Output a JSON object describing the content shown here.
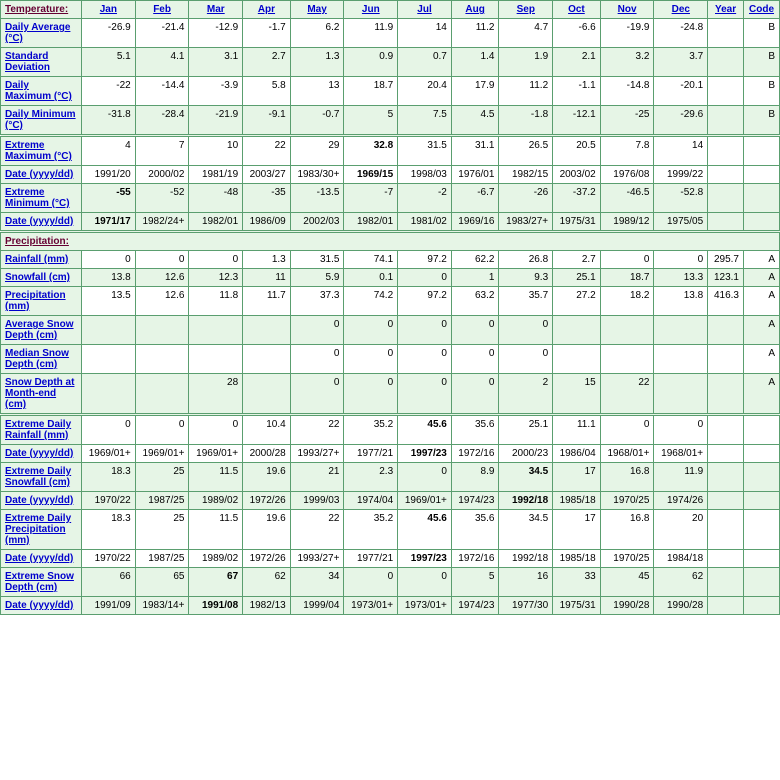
{
  "headers": [
    "Jan",
    "Feb",
    "Mar",
    "Apr",
    "May",
    "Jun",
    "Jul",
    "Aug",
    "Sep",
    "Oct",
    "Nov",
    "Dec",
    "Year",
    "Code"
  ],
  "sections": {
    "temperature": "Temperature:",
    "precipitation": "Precipitation:"
  },
  "rows": [
    {
      "label": "Daily Average (°C)",
      "cls": "white",
      "vals": [
        "-26.9",
        "-21.4",
        "-12.9",
        "-1.7",
        "6.2",
        "11.9",
        "14",
        "11.2",
        "4.7",
        "-6.6",
        "-19.9",
        "-24.8",
        "",
        "B"
      ]
    },
    {
      "label": "Standard Deviation",
      "cls": "green",
      "vals": [
        "5.1",
        "4.1",
        "3.1",
        "2.7",
        "1.3",
        "0.9",
        "0.7",
        "1.4",
        "1.9",
        "2.1",
        "3.2",
        "3.7",
        "",
        "B"
      ]
    },
    {
      "label": "Daily Maximum (°C)",
      "cls": "white",
      "vals": [
        "-22",
        "-14.4",
        "-3.9",
        "5.8",
        "13",
        "18.7",
        "20.4",
        "17.9",
        "11.2",
        "-1.1",
        "-14.8",
        "-20.1",
        "",
        "B"
      ]
    },
    {
      "label": "Daily Minimum (°C)",
      "cls": "green",
      "vals": [
        "-31.8",
        "-28.4",
        "-21.9",
        "-9.1",
        "-0.7",
        "5",
        "7.5",
        "4.5",
        "-1.8",
        "-12.1",
        "-25",
        "-29.6",
        "",
        "B"
      ]
    },
    {
      "label": "Extreme Maximum (°C)",
      "cls": "white",
      "dbl": true,
      "vals": [
        "4",
        "7",
        "10",
        "22",
        "29",
        "32.8",
        "31.5",
        "31.1",
        "26.5",
        "20.5",
        "7.8",
        "14",
        "",
        ""
      ],
      "bold": [
        5
      ]
    },
    {
      "label": "Date (yyyy/dd)",
      "cls": "white",
      "vals": [
        "1991/20",
        "2000/02",
        "1981/19",
        "2003/27",
        "1983/30+",
        "1969/15",
        "1998/03",
        "1976/01",
        "1982/15",
        "2003/02",
        "1976/08",
        "1999/22",
        "",
        ""
      ],
      "bold": [
        5
      ]
    },
    {
      "label": "Extreme Minimum (°C)",
      "cls": "green",
      "vals": [
        "-55",
        "-52",
        "-48",
        "-35",
        "-13.5",
        "-7",
        "-2",
        "-6.7",
        "-26",
        "-37.2",
        "-46.5",
        "-52.8",
        "",
        ""
      ],
      "bold": [
        0
      ]
    },
    {
      "label": "Date (yyyy/dd)",
      "cls": "green",
      "vals": [
        "1971/17",
        "1982/24+",
        "1982/01",
        "1986/09",
        "2002/03",
        "1982/01",
        "1981/02",
        "1969/16",
        "1983/27+",
        "1975/31",
        "1989/12",
        "1975/05",
        "",
        ""
      ],
      "bold": [
        0
      ]
    },
    {
      "section": "precipitation",
      "dbl": true
    },
    {
      "label": "Rainfall (mm)",
      "cls": "white",
      "vals": [
        "0",
        "0",
        "0",
        "1.3",
        "31.5",
        "74.1",
        "97.2",
        "62.2",
        "26.8",
        "2.7",
        "0",
        "0",
        "295.7",
        "A"
      ]
    },
    {
      "label": "Snowfall (cm)",
      "cls": "green",
      "vals": [
        "13.8",
        "12.6",
        "12.3",
        "11",
        "5.9",
        "0.1",
        "0",
        "1",
        "9.3",
        "25.1",
        "18.7",
        "13.3",
        "123.1",
        "A"
      ]
    },
    {
      "label": "Precipitation (mm)",
      "cls": "white",
      "vals": [
        "13.5",
        "12.6",
        "11.8",
        "11.7",
        "37.3",
        "74.2",
        "97.2",
        "63.2",
        "35.7",
        "27.2",
        "18.2",
        "13.8",
        "416.3",
        "A"
      ]
    },
    {
      "label": "Average Snow Depth (cm)",
      "cls": "green",
      "vals": [
        "",
        "",
        "",
        "",
        "0",
        "0",
        "0",
        "0",
        "0",
        "",
        "",
        "",
        "",
        "A"
      ]
    },
    {
      "label": "Median Snow Depth (cm)",
      "cls": "white",
      "vals": [
        "",
        "",
        "",
        "",
        "0",
        "0",
        "0",
        "0",
        "0",
        "",
        "",
        "",
        "",
        "A"
      ]
    },
    {
      "label": "Snow Depth at Month-end (cm)",
      "cls": "green",
      "vals": [
        "",
        "",
        "28",
        "",
        "0",
        "0",
        "0",
        "0",
        "2",
        "15",
        "22",
        "",
        "",
        "A"
      ]
    },
    {
      "label": "Extreme Daily Rainfall (mm)",
      "cls": "white",
      "dbl": true,
      "vals": [
        "0",
        "0",
        "0",
        "10.4",
        "22",
        "35.2",
        "45.6",
        "35.6",
        "25.1",
        "11.1",
        "0",
        "0",
        "",
        ""
      ],
      "bold": [
        6
      ]
    },
    {
      "label": "Date (yyyy/dd)",
      "cls": "white",
      "vals": [
        "1969/01+",
        "1969/01+",
        "1969/01+",
        "2000/28",
        "1993/27+",
        "1977/21",
        "1997/23",
        "1972/16",
        "2000/23",
        "1986/04",
        "1968/01+",
        "1968/01+",
        "",
        ""
      ],
      "bold": [
        6
      ]
    },
    {
      "label": "Extreme Daily Snowfall (cm)",
      "cls": "green",
      "vals": [
        "18.3",
        "25",
        "11.5",
        "19.6",
        "21",
        "2.3",
        "0",
        "8.9",
        "34.5",
        "17",
        "16.8",
        "11.9",
        "",
        ""
      ],
      "bold": [
        8
      ]
    },
    {
      "label": "Date (yyyy/dd)",
      "cls": "green",
      "vals": [
        "1970/22",
        "1987/25",
        "1989/02",
        "1972/26",
        "1999/03",
        "1974/04",
        "1969/01+",
        "1974/23",
        "1992/18",
        "1985/18",
        "1970/25",
        "1974/26",
        "",
        ""
      ],
      "bold": [
        8
      ]
    },
    {
      "label": "Extreme Daily Precipitation (mm)",
      "cls": "white",
      "vals": [
        "18.3",
        "25",
        "11.5",
        "19.6",
        "22",
        "35.2",
        "45.6",
        "35.6",
        "34.5",
        "17",
        "16.8",
        "20",
        "",
        ""
      ],
      "bold": [
        6
      ]
    },
    {
      "label": "Date (yyyy/dd)",
      "cls": "white",
      "vals": [
        "1970/22",
        "1987/25",
        "1989/02",
        "1972/26",
        "1993/27+",
        "1977/21",
        "1997/23",
        "1972/16",
        "1992/18",
        "1985/18",
        "1970/25",
        "1984/18",
        "",
        ""
      ],
      "bold": [
        6
      ]
    },
    {
      "label": "Extreme Snow Depth (cm)",
      "cls": "green",
      "vals": [
        "66",
        "65",
        "67",
        "62",
        "34",
        "0",
        "0",
        "5",
        "16",
        "33",
        "45",
        "62",
        "",
        ""
      ],
      "bold": [
        2
      ]
    },
    {
      "label": "Date (yyyy/dd)",
      "cls": "green",
      "vals": [
        "1991/09",
        "1983/14+",
        "1991/08",
        "1982/13",
        "1999/04",
        "1973/01+",
        "1973/01+",
        "1974/23",
        "1977/30",
        "1975/31",
        "1990/28",
        "1990/28",
        "",
        ""
      ],
      "bold": [
        2
      ]
    }
  ]
}
